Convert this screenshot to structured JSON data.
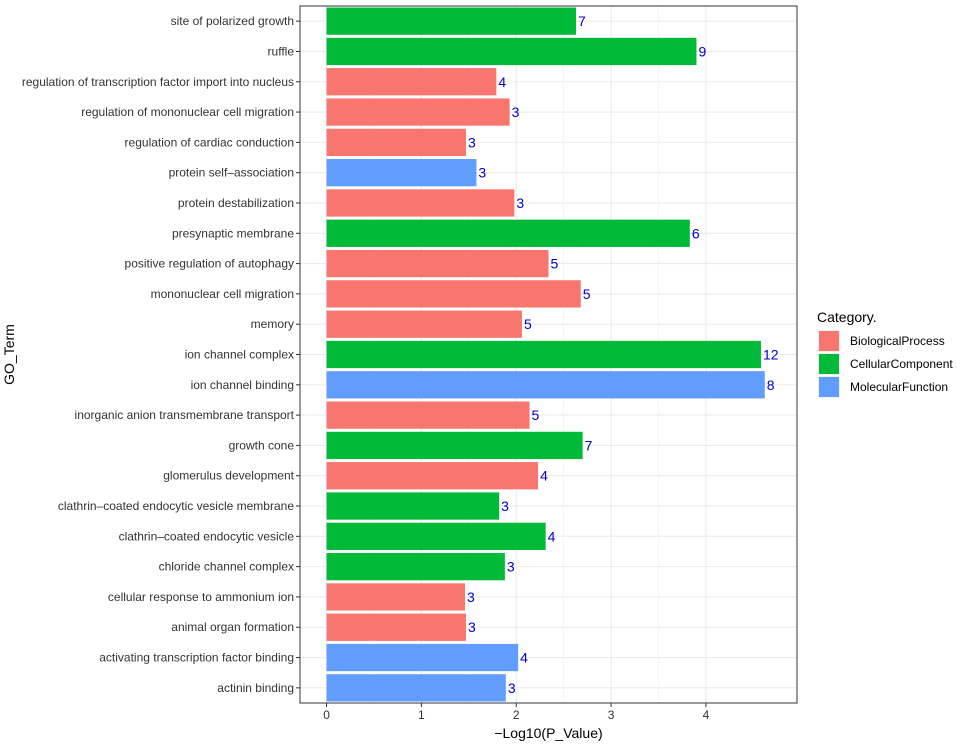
{
  "chart_data": {
    "type": "bar",
    "orientation": "horizontal",
    "xlabel": "−Log10(P_Value)",
    "ylabel": "GO_Term",
    "xlim": [
      -0.28,
      4.96
    ],
    "xticks": [
      0,
      1,
      2,
      3,
      4
    ],
    "grid": true,
    "legend": {
      "title": "Category.",
      "position": "right",
      "entries": [
        {
          "name": "BiologicalProcess",
          "color": "#F8766D"
        },
        {
          "name": "CellularComponent",
          "color": "#00BA38"
        },
        {
          "name": "MolecularFunction",
          "color": "#619CFF"
        }
      ]
    },
    "bars": [
      {
        "term": "site of polarized growth",
        "value": 2.63,
        "count": "7",
        "category": "CellularComponent"
      },
      {
        "term": "ruffle",
        "value": 3.9,
        "count": "9",
        "category": "CellularComponent"
      },
      {
        "term": "regulation of transcription factor import into nucleus",
        "value": 1.79,
        "count": "4",
        "category": "BiologicalProcess"
      },
      {
        "term": "regulation of mononuclear cell migration",
        "value": 1.93,
        "count": "3",
        "category": "BiologicalProcess"
      },
      {
        "term": "regulation of cardiac conduction",
        "value": 1.47,
        "count": "3",
        "category": "BiologicalProcess"
      },
      {
        "term": "protein self–association",
        "value": 1.58,
        "count": "3",
        "category": "MolecularFunction"
      },
      {
        "term": "protein destabilization",
        "value": 1.98,
        "count": "3",
        "category": "BiologicalProcess"
      },
      {
        "term": "presynaptic membrane",
        "value": 3.83,
        "count": "6",
        "category": "CellularComponent"
      },
      {
        "term": "positive regulation of autophagy",
        "value": 2.34,
        "count": "5",
        "category": "BiologicalProcess"
      },
      {
        "term": "mononuclear cell migration",
        "value": 2.68,
        "count": "5",
        "category": "BiologicalProcess"
      },
      {
        "term": "memory",
        "value": 2.06,
        "count": "5",
        "category": "BiologicalProcess"
      },
      {
        "term": "ion channel complex",
        "value": 4.58,
        "count": "12",
        "category": "CellularComponent"
      },
      {
        "term": "ion channel binding",
        "value": 4.62,
        "count": "8",
        "category": "MolecularFunction"
      },
      {
        "term": "inorganic anion transmembrane transport",
        "value": 2.14,
        "count": "5",
        "category": "BiologicalProcess"
      },
      {
        "term": "growth cone",
        "value": 2.7,
        "count": "7",
        "category": "CellularComponent"
      },
      {
        "term": "glomerulus development",
        "value": 2.23,
        "count": "4",
        "category": "BiologicalProcess"
      },
      {
        "term": "clathrin–coated endocytic vesicle membrane",
        "value": 1.82,
        "count": "3",
        "category": "CellularComponent"
      },
      {
        "term": "clathrin–coated endocytic vesicle",
        "value": 2.31,
        "count": "4",
        "category": "CellularComponent"
      },
      {
        "term": "chloride channel complex",
        "value": 1.88,
        "count": "3",
        "category": "CellularComponent"
      },
      {
        "term": "cellular response to ammonium ion",
        "value": 1.46,
        "count": "3",
        "category": "BiologicalProcess"
      },
      {
        "term": "animal organ formation",
        "value": 1.47,
        "count": "3",
        "category": "BiologicalProcess"
      },
      {
        "term": "activating transcription factor binding",
        "value": 2.02,
        "count": "4",
        "category": "MolecularFunction"
      },
      {
        "term": "actinin binding",
        "value": 1.89,
        "count": "3",
        "category": "MolecularFunction"
      }
    ]
  }
}
